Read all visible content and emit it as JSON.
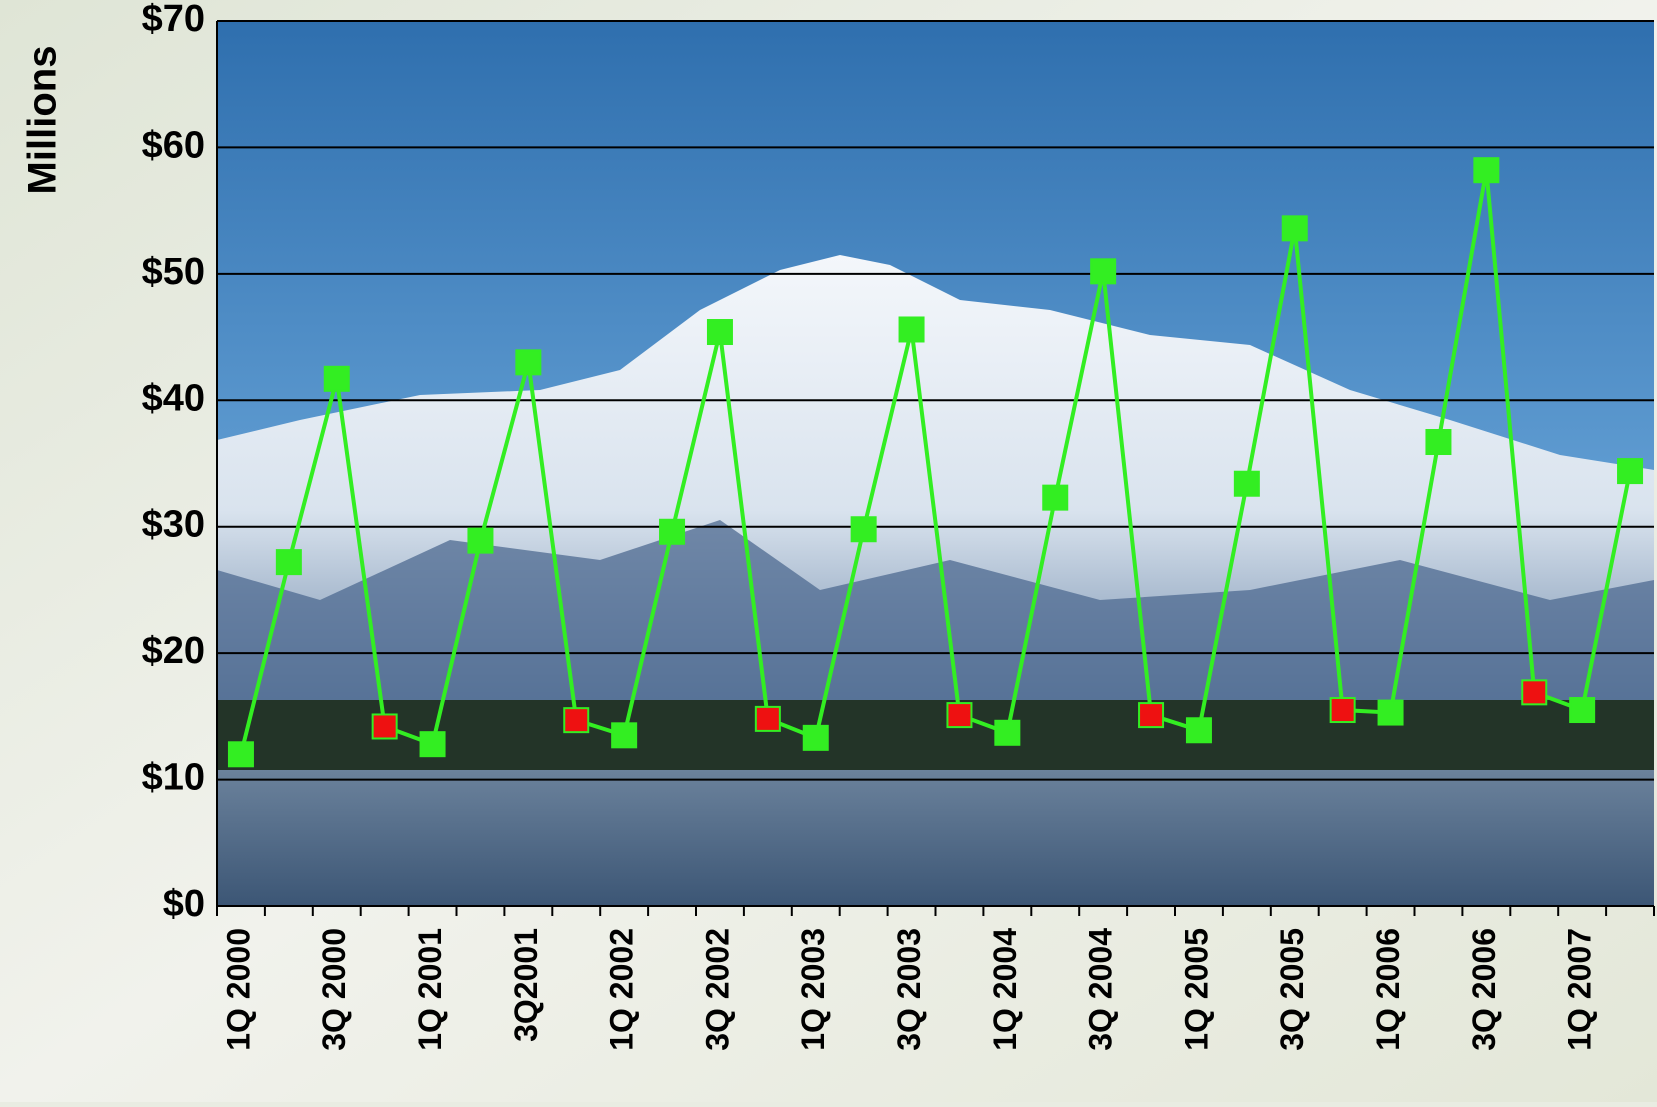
{
  "chart_data": {
    "type": "line",
    "y_label": "Millions",
    "categories": [
      "1Q 2000",
      null,
      "3Q 2000",
      null,
      "1Q 2001",
      null,
      "3Q2001",
      null,
      "1Q 2002",
      null,
      "3Q 2002",
      null,
      "1Q 2003",
      null,
      "3Q 2003",
      null,
      "1Q 2004",
      null,
      "3Q 2004",
      null,
      "1Q 2005",
      null,
      "3Q 2005",
      null,
      "1Q 2006",
      null,
      "3Q 2006",
      null,
      "1Q 2007",
      null
    ],
    "series": [
      {
        "color": "#33ee22",
        "values": [
          12,
          27.2,
          41.7,
          14.2,
          12.8,
          28.9,
          43,
          14.7,
          13.5,
          29.6,
          45.4,
          14.8,
          13.3,
          29.8,
          45.6,
          15.1,
          13.7,
          32.3,
          50.2,
          15.1,
          13.9,
          33.4,
          53.6,
          15.5,
          15.3,
          36.7,
          58.2,
          16.9,
          15.5,
          34.4
        ],
        "marker_colors": [
          "#33ee22",
          "#33ee22",
          "#33ee22",
          "#ee1111",
          "#33ee22",
          "#33ee22",
          "#33ee22",
          "#ee1111",
          "#33ee22",
          "#33ee22",
          "#33ee22",
          "#ee1111",
          "#33ee22",
          "#33ee22",
          "#33ee22",
          "#ee1111",
          "#33ee22",
          "#33ee22",
          "#33ee22",
          "#ee1111",
          "#33ee22",
          "#33ee22",
          "#33ee22",
          "#ee1111",
          "#33ee22",
          "#33ee22",
          "#33ee22",
          "#ee1111",
          "#33ee22",
          "#33ee22"
        ]
      }
    ],
    "ylim": [
      0,
      70
    ],
    "yticks": [
      {
        "value": 0,
        "label": "$0"
      },
      {
        "value": 10,
        "label": "$10"
      },
      {
        "value": 20,
        "label": "$20"
      },
      {
        "value": 30,
        "label": "$30"
      },
      {
        "value": 40,
        "label": "$40"
      },
      {
        "value": 50,
        "label": "$50"
      },
      {
        "value": 60,
        "label": "$60"
      },
      {
        "value": 70,
        "label": "$70"
      }
    ],
    "grid": true
  }
}
